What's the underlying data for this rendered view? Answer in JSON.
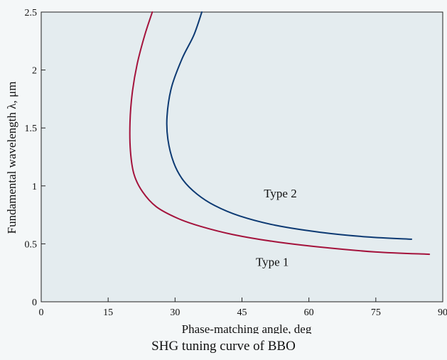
{
  "caption": "SHG tuning curve of BBO",
  "chart_data": {
    "type": "line",
    "title": "",
    "xlabel": "Phase-matching angle, deg",
    "ylabel": "Fundamental wavelength λ, μm",
    "xlim": [
      0,
      90
    ],
    "ylim": [
      0,
      2.5
    ],
    "xticks": [
      0,
      15,
      30,
      45,
      60,
      75,
      90
    ],
    "yticks": [
      0,
      0.5,
      1,
      1.5,
      2,
      2.5
    ],
    "grid": false,
    "series": [
      {
        "name": "Type 1",
        "color": "#a4133c",
        "x": [
          24.9,
          23.2,
          21.5,
          20.4,
          19.9,
          20.0,
          20.8,
          22.7,
          25.8,
          30.6,
          35.8,
          43.0,
          52.1,
          63.0,
          75.0,
          87.0
        ],
        "y": [
          2.5,
          2.3,
          2.05,
          1.8,
          1.55,
          1.3,
          1.1,
          0.95,
          0.82,
          0.72,
          0.65,
          0.58,
          0.52,
          0.47,
          0.43,
          0.41
        ]
      },
      {
        "name": "Type 2",
        "color": "#0d3a73",
        "x": [
          36.0,
          34.2,
          31.6,
          29.2,
          28.2,
          28.4,
          29.7,
          31.8,
          34.9,
          38.9,
          44.5,
          52.5,
          62.5,
          73.0,
          83.0
        ],
        "y": [
          2.5,
          2.3,
          2.1,
          1.85,
          1.6,
          1.4,
          1.2,
          1.05,
          0.93,
          0.83,
          0.74,
          0.66,
          0.6,
          0.56,
          0.54
        ]
      }
    ],
    "annotations": [
      {
        "text": "Type 2",
        "x": 53.6,
        "y": 0.9
      },
      {
        "text": "Type 1",
        "x": 51.8,
        "y": 0.31
      }
    ]
  }
}
